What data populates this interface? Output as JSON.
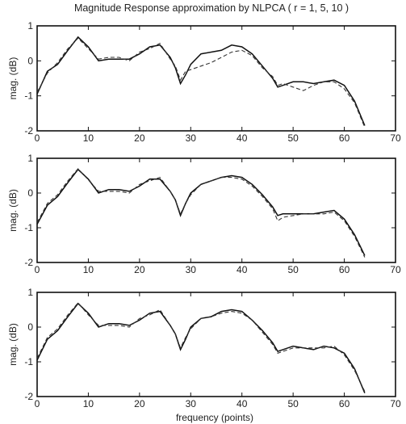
{
  "figure_title": "Magnitude Response approximation by NLPCA ( r = 1, 5, 10 )",
  "chart_data": [
    {
      "type": "line",
      "title": "Magnitude Response approximation by NLPCA ( r = 1, 5, 10 )",
      "ylabel": "mag. (dB)",
      "xlabel": "",
      "xlim": [
        0,
        70
      ],
      "ylim": [
        -2,
        1
      ],
      "xticks": [
        0,
        10,
        20,
        30,
        40,
        50,
        60,
        70
      ],
      "yticks": [
        -2,
        -1,
        0,
        1
      ],
      "x": [
        0,
        2,
        4,
        6,
        8,
        10,
        12,
        14,
        16,
        18,
        20,
        22,
        24,
        26,
        27,
        28,
        29,
        30,
        32,
        34,
        36,
        38,
        40,
        42,
        44,
        46,
        47,
        48,
        50,
        52,
        54,
        56,
        58,
        60,
        62,
        64
      ],
      "series": [
        {
          "values": [
            -0.95,
            -0.3,
            -0.1,
            0.3,
            0.68,
            0.4,
            0.0,
            0.05,
            0.05,
            0.05,
            0.2,
            0.4,
            0.45,
            0.1,
            -0.2,
            -0.65,
            -0.4,
            -0.1,
            0.2,
            0.25,
            0.3,
            0.45,
            0.4,
            0.2,
            -0.15,
            -0.5,
            -0.75,
            -0.7,
            -0.6,
            -0.6,
            -0.65,
            -0.6,
            -0.55,
            -0.7,
            -1.15,
            -1.85
          ],
          "style": "solid"
        },
        {
          "values": [
            -0.9,
            -0.35,
            -0.05,
            0.35,
            0.65,
            0.35,
            0.05,
            0.1,
            0.1,
            0.0,
            0.25,
            0.35,
            0.5,
            0.05,
            -0.15,
            -0.55,
            -0.3,
            -0.25,
            -0.15,
            -0.05,
            0.1,
            0.25,
            0.3,
            0.15,
            -0.2,
            -0.45,
            -0.7,
            -0.65,
            -0.75,
            -0.85,
            -0.7,
            -0.6,
            -0.6,
            -0.8,
            -1.2,
            -1.9
          ],
          "style": "dashed"
        }
      ]
    },
    {
      "type": "line",
      "title": "",
      "ylabel": "mag. (dB)",
      "xlabel": "",
      "xlim": [
        0,
        70
      ],
      "ylim": [
        -2,
        1
      ],
      "xticks": [
        0,
        10,
        20,
        30,
        40,
        50,
        60,
        70
      ],
      "yticks": [
        -2,
        -1,
        0,
        1
      ],
      "x": [
        0,
        2,
        4,
        6,
        8,
        10,
        12,
        14,
        16,
        18,
        20,
        22,
        24,
        26,
        27,
        28,
        29,
        30,
        32,
        34,
        36,
        38,
        40,
        42,
        44,
        46,
        47,
        48,
        50,
        52,
        54,
        56,
        58,
        60,
        62,
        64
      ],
      "series": [
        {
          "values": [
            -0.9,
            -0.35,
            -0.1,
            0.3,
            0.68,
            0.4,
            0.0,
            0.1,
            0.1,
            0.05,
            0.2,
            0.4,
            0.4,
            0.05,
            -0.2,
            -0.65,
            -0.3,
            0.0,
            0.25,
            0.35,
            0.45,
            0.5,
            0.45,
            0.25,
            -0.05,
            -0.4,
            -0.65,
            -0.6,
            -0.6,
            -0.6,
            -0.6,
            -0.55,
            -0.5,
            -0.75,
            -1.2,
            -1.8
          ],
          "style": "solid"
        },
        {
          "values": [
            -0.85,
            -0.3,
            -0.05,
            0.35,
            0.7,
            0.38,
            0.05,
            0.05,
            0.05,
            0.0,
            0.25,
            0.35,
            0.45,
            0.05,
            -0.2,
            -0.6,
            -0.3,
            -0.05,
            0.25,
            0.35,
            0.45,
            0.45,
            0.4,
            0.2,
            -0.1,
            -0.45,
            -0.8,
            -0.7,
            -0.65,
            -0.6,
            -0.6,
            -0.6,
            -0.55,
            -0.8,
            -1.25,
            -1.85
          ],
          "style": "dashed"
        }
      ]
    },
    {
      "type": "line",
      "title": "",
      "ylabel": "mag. (dB)",
      "xlabel": "frequency (points)",
      "xlim": [
        0,
        70
      ],
      "ylim": [
        -2,
        1
      ],
      "xticks": [
        0,
        10,
        20,
        30,
        40,
        50,
        60,
        70
      ],
      "yticks": [
        -2,
        -1,
        0,
        1
      ],
      "x": [
        0,
        2,
        4,
        6,
        8,
        10,
        12,
        14,
        16,
        18,
        20,
        22,
        24,
        26,
        27,
        28,
        29,
        30,
        32,
        34,
        36,
        38,
        40,
        42,
        44,
        46,
        47,
        48,
        50,
        52,
        54,
        56,
        58,
        60,
        62,
        64
      ],
      "series": [
        {
          "values": [
            -0.95,
            -0.35,
            -0.1,
            0.3,
            0.68,
            0.4,
            0.0,
            0.1,
            0.1,
            0.05,
            0.2,
            0.4,
            0.45,
            0.05,
            -0.2,
            -0.65,
            -0.35,
            0.0,
            0.25,
            0.3,
            0.45,
            0.5,
            0.45,
            0.2,
            -0.1,
            -0.45,
            -0.7,
            -0.65,
            -0.55,
            -0.6,
            -0.65,
            -0.55,
            -0.6,
            -0.75,
            -1.2,
            -1.9
          ],
          "style": "solid"
        },
        {
          "values": [
            -0.9,
            -0.3,
            -0.05,
            0.35,
            0.7,
            0.35,
            0.05,
            0.05,
            0.05,
            0.0,
            0.25,
            0.35,
            0.5,
            0.05,
            -0.2,
            -0.6,
            -0.3,
            -0.05,
            0.25,
            0.3,
            0.4,
            0.45,
            0.4,
            0.2,
            -0.15,
            -0.5,
            -0.75,
            -0.7,
            -0.6,
            -0.6,
            -0.6,
            -0.6,
            -0.55,
            -0.8,
            -1.25,
            -1.85
          ],
          "style": "dashed"
        }
      ]
    }
  ]
}
